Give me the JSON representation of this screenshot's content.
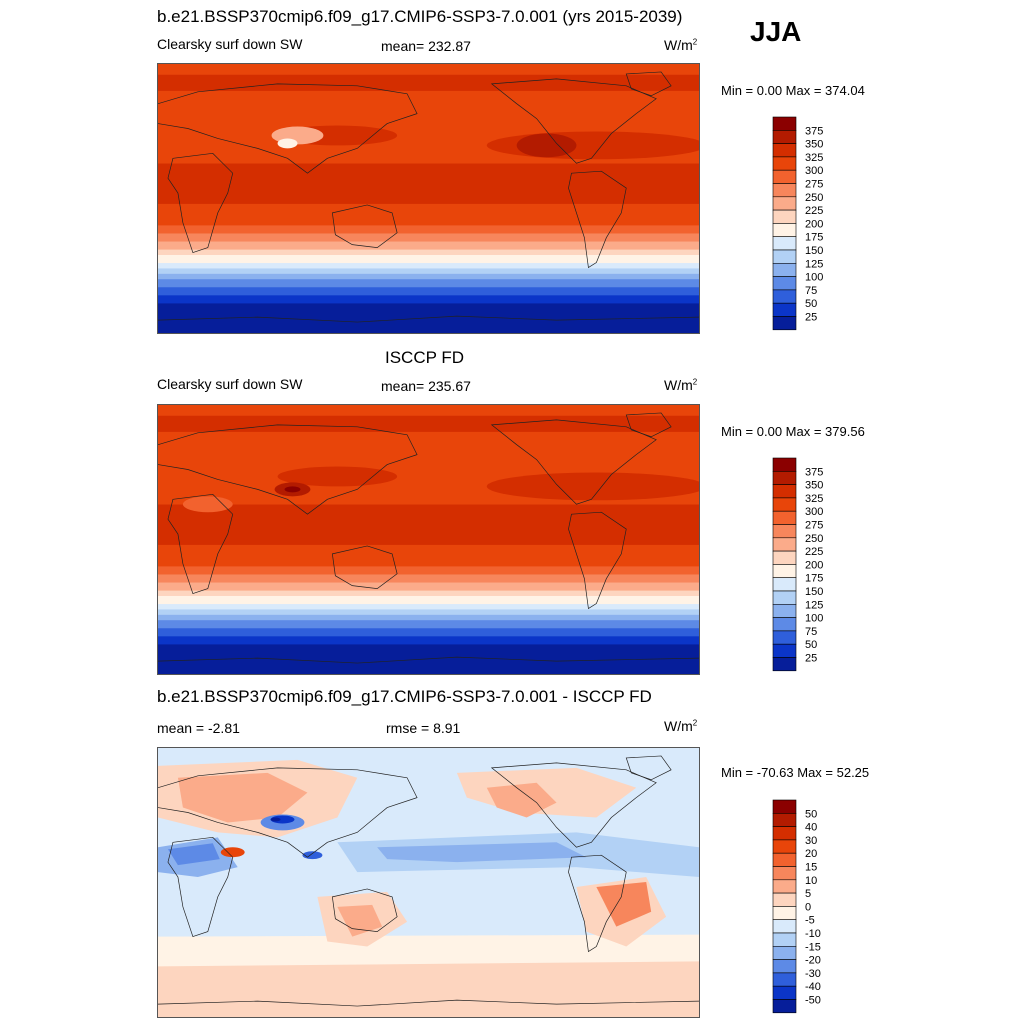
{
  "figure": {
    "title": "b.e21.BSSP370cmip6.f09_g17.CMIP6-SSP3-7.0.001 (yrs 2015-2039)",
    "season": "JJA"
  },
  "panels": [
    {
      "title": "",
      "left_label": "Clearsky surf down SW",
      "center_label": "mean= 232.87",
      "units": "W/m",
      "units_sup": "2",
      "minmax": "Min =   0.00 Max = 374.04"
    },
    {
      "title": "ISCCP FD",
      "left_label": "Clearsky surf down SW",
      "center_label": "mean= 235.67",
      "units": "W/m",
      "units_sup": "2",
      "minmax": "Min =   0.00 Max = 379.56"
    },
    {
      "title": "b.e21.BSSP370cmip6.f09_g17.CMIP6-SSP3-7.0.001 - ISCCP FD",
      "left_label": "mean =  -2.81",
      "center_label": "rmse =   8.91",
      "units": "W/m",
      "units_sup": "2",
      "minmax": "Min = -70.63 Max =  52.25"
    }
  ],
  "colorbars": {
    "abs": {
      "labels": [
        "375",
        "350",
        "325",
        "300",
        "275",
        "250",
        "225",
        "200",
        "175",
        "150",
        "125",
        "100",
        "75",
        "50",
        "25"
      ],
      "colors": [
        "#8b0000",
        "#b31b00",
        "#d42e00",
        "#e8450a",
        "#f2622e",
        "#f7865c",
        "#fbab8a",
        "#fdd5bf",
        "#fff3e6",
        "#d9eafb",
        "#b2d1f5",
        "#8bb1ee",
        "#5d8ae6",
        "#2f5fdb",
        "#0b35c8",
        "#061e9a"
      ]
    },
    "diff": {
      "labels": [
        "50",
        "40",
        "30",
        "20",
        "15",
        "10",
        "5",
        "0",
        "-5",
        "-10",
        "-15",
        "-20",
        "-30",
        "-40",
        "-50"
      ],
      "colors": [
        "#8b0000",
        "#b31b00",
        "#d42e00",
        "#e8450a",
        "#f2622e",
        "#f7865c",
        "#fbab8a",
        "#fdd5bf",
        "#fff3e6",
        "#d9eafb",
        "#b2d1f5",
        "#8bb1ee",
        "#5d8ae6",
        "#2f5fdb",
        "#0b35c8",
        "#061e9a"
      ]
    }
  }
}
